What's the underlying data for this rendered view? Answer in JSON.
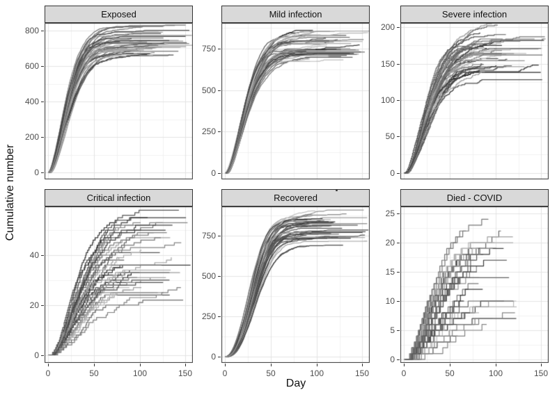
{
  "figure": {
    "background": "#ffffff",
    "strip_bg": "#d9d9d9",
    "strip_border": "#333333",
    "panel_border": "#333333",
    "grid_major_color": "#e3e3e3",
    "grid_minor_color": "#f1f1f1",
    "tick_color": "#333333",
    "tick_label_color": "#4d4d4d",
    "line_gray_dark": "#242424",
    "line_gray_light": "#c0c0c0"
  },
  "chart_data": {
    "type": "line",
    "title": "",
    "xlabel": "Day",
    "ylabel": "Cumulative number",
    "description": "Faceted spaghetti plot of ~40 stochastic epidemic simulation trajectories per compartment; cumulative counts vs day.",
    "legend": "none",
    "grid": true,
    "x_ticks": [
      0,
      50,
      100,
      150
    ],
    "x_minor": [
      25,
      75,
      125
    ],
    "xlim": [
      -4,
      158
    ],
    "panels": [
      {
        "title": "Exposed",
        "yticks": [
          0,
          200,
          400,
          600,
          800
        ],
        "y_minor": [
          100,
          300,
          500,
          700
        ],
        "ylim": [
          -39,
          843
        ],
        "n_runs": 40,
        "seed": 11,
        "plateau": [
          648,
          805
        ],
        "tau": [
          21,
          29
        ],
        "shape": [
          1.45,
          1.8
        ],
        "end": [
          88,
          158
        ],
        "step": false,
        "noise": 5,
        "show_x_labels": false
      },
      {
        "title": "Mild infection",
        "yticks": [
          0,
          250,
          500,
          750
        ],
        "y_minor": [
          125,
          375,
          625,
          875
        ],
        "ylim": [
          -38,
          905
        ],
        "n_runs": 40,
        "seed": 22,
        "plateau": [
          690,
          862
        ],
        "tau": [
          22,
          30
        ],
        "shape": [
          1.5,
          1.85
        ],
        "end": [
          88,
          158
        ],
        "step": false,
        "noise": 5,
        "show_x_labels": false
      },
      {
        "title": "Severe infection",
        "yticks": [
          0,
          50,
          100,
          150,
          200
        ],
        "y_minor": [
          25,
          75,
          125,
          175
        ],
        "ylim": [
          -9,
          206
        ],
        "n_runs": 40,
        "seed": 33,
        "plateau": [
          130,
          196
        ],
        "tau": [
          26,
          36
        ],
        "shape": [
          1.5,
          1.9
        ],
        "end": [
          80,
          158
        ],
        "step": true,
        "noise": 2,
        "show_x_labels": false
      },
      {
        "title": "Critical infection",
        "yticks": [
          0,
          20,
          40
        ],
        "y_minor": [
          10,
          30,
          50
        ],
        "ylim": [
          -3.2,
          59.5
        ],
        "n_runs": 40,
        "seed": 44,
        "plateau": [
          22,
          57
        ],
        "tau": [
          30,
          46
        ],
        "shape": [
          1.5,
          1.9
        ],
        "end": [
          76,
          156
        ],
        "step": true,
        "noise": 1,
        "show_x_labels": true
      },
      {
        "title": "Recovered",
        "yticks": [
          0,
          250,
          500,
          750
        ],
        "y_minor": [
          125,
          375,
          625,
          875
        ],
        "ylim": [
          -40,
          930
        ],
        "n_runs": 40,
        "seed": 55,
        "plateau": [
          700,
          882
        ],
        "tau": [
          30,
          40
        ],
        "shape": [
          2.0,
          2.5
        ],
        "end": [
          88,
          158
        ],
        "step": false,
        "noise": 5,
        "show_x_labels": true
      },
      {
        "title": "Died - COVID",
        "yticks": [
          0,
          5,
          10,
          15,
          20,
          25
        ],
        "y_minor": [
          2.5,
          7.5,
          12.5,
          17.5,
          22.5
        ],
        "ylim": [
          -0.6,
          26.2
        ],
        "n_runs": 40,
        "seed": 66,
        "plateau": [
          7,
          25
        ],
        "tau": [
          34,
          58
        ],
        "shape": [
          1.3,
          1.7
        ],
        "end": [
          58,
          126
        ],
        "step": true,
        "noise": 0.5,
        "show_x_labels": true
      }
    ]
  }
}
